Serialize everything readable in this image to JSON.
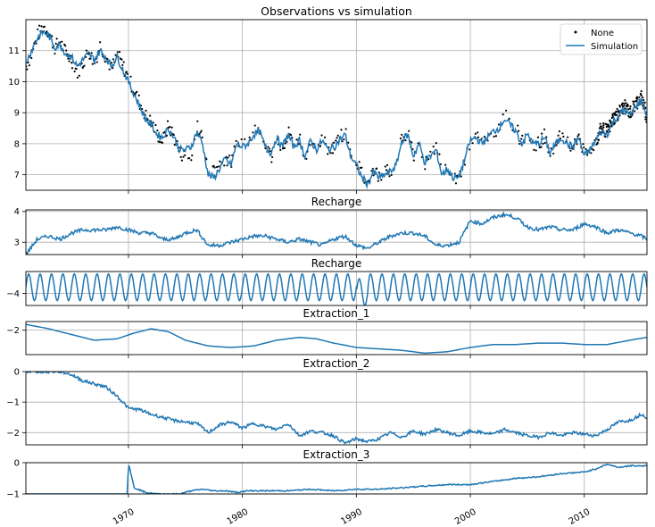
{
  "colors": {
    "simulation": "#1f77b4",
    "observations": "#000000",
    "grid": "#b0b0b0",
    "axis": "#000000",
    "background": "#ffffff"
  },
  "x_tick_labels": [
    "1970",
    "1980",
    "1990",
    "2000",
    "2010"
  ],
  "chart_data": [
    {
      "type": "line",
      "title": "Observations vs simulation",
      "xlabel": "",
      "ylabel": "",
      "xlim": [
        1961.0,
        2015.5
      ],
      "ylim": [
        6.5,
        12.0
      ],
      "yticks": [
        7,
        8,
        9,
        10,
        11
      ],
      "grid": true,
      "legend": "top-right",
      "series": [
        {
          "name": "None",
          "style": "points",
          "color": "#000000",
          "x": [
            1961.0,
            1961.5,
            1962.0,
            1962.5,
            1963.0,
            1963.5,
            1964.0,
            1964.5,
            1965.0,
            1965.5,
            1966.0,
            1966.5,
            1967.0,
            1967.5,
            1968.0,
            1968.5,
            1969.0,
            1969.5,
            1970.0,
            1970.5,
            1971.0,
            1971.5,
            1972.0,
            1972.5,
            1973.0,
            1973.5,
            1974.0,
            1974.5,
            1975.0,
            1975.5,
            1976.0,
            1976.5,
            1977.0,
            1977.5,
            1978.0,
            1978.5,
            1979.0,
            1979.5,
            1980.0,
            1980.5,
            1981.0,
            1981.5,
            1982.0,
            1982.5,
            1983.0,
            1983.5,
            1984.0,
            1984.5,
            1985.0,
            1985.5,
            1986.0,
            1986.5,
            1987.0,
            1987.5,
            1988.0,
            1988.5,
            1989.0,
            1989.5,
            1990.0,
            1990.5,
            1991.0,
            1991.5,
            1992.0,
            1992.5,
            1993.0,
            1993.5,
            1994.0,
            1994.5,
            1995.0,
            1995.5,
            1996.0,
            1996.5,
            1997.0,
            1997.5,
            1998.0,
            1998.5,
            1999.0,
            1999.5,
            2000.0,
            2000.5,
            2001.0,
            2001.5,
            2002.0,
            2002.5,
            2003.0,
            2003.5,
            2004.0,
            2004.5,
            2005.0,
            2005.5,
            2006.0,
            2006.5,
            2007.0,
            2007.5,
            2008.0,
            2008.5,
            2009.0,
            2009.5,
            2010.0,
            2010.5,
            2011.0,
            2011.5,
            2012.0,
            2012.5,
            2013.0,
            2013.5,
            2014.0,
            2014.5,
            2015.0,
            2015.5
          ],
          "values": [
            10.5,
            10.9,
            11.5,
            11.8,
            11.6,
            11.1,
            11.3,
            10.9,
            10.7,
            10.3,
            10.6,
            11.0,
            10.6,
            11.2,
            10.8,
            10.4,
            10.9,
            10.5,
            10.1,
            9.7,
            9.3,
            8.9,
            8.7,
            8.3,
            8.1,
            8.6,
            8.2,
            7.7,
            7.6,
            7.7,
            8.6,
            8.1,
            7.2,
            7.1,
            7.3,
            7.6,
            7.3,
            8.2,
            8.0,
            8.1,
            8.4,
            8.5,
            7.9,
            7.6,
            8.3,
            7.8,
            8.4,
            7.9,
            8.2,
            7.5,
            8.2,
            7.8,
            8.2,
            7.7,
            7.9,
            8.2,
            8.4,
            7.6,
            7.4,
            7.0,
            6.8,
            7.2,
            6.9,
            7.1,
            7.2,
            7.4,
            8.2,
            8.4,
            7.6,
            8.1,
            7.4,
            7.6,
            7.9,
            7.1,
            7.3,
            6.9,
            6.8,
            7.5,
            8.1,
            8.3,
            8.0,
            8.2,
            8.4,
            8.5,
            8.9,
            8.7,
            8.5,
            8.0,
            8.4,
            8.0,
            8.0,
            8.3,
            7.7,
            8.0,
            8.3,
            8.0,
            7.9,
            8.3,
            7.6,
            7.8,
            8.1,
            8.5,
            8.4,
            8.8,
            9.0,
            9.2,
            9.0,
            9.3,
            9.5,
            8.8
          ]
        },
        {
          "name": "Simulation",
          "style": "line",
          "color": "#1f77b4",
          "x": [
            1961.0,
            1961.5,
            1962.0,
            1962.5,
            1963.0,
            1963.5,
            1964.0,
            1964.5,
            1965.0,
            1965.5,
            1966.0,
            1966.5,
            1967.0,
            1967.5,
            1968.0,
            1968.5,
            1969.0,
            1969.5,
            1970.0,
            1970.5,
            1971.0,
            1971.5,
            1972.0,
            1972.5,
            1973.0,
            1973.5,
            1974.0,
            1974.5,
            1975.0,
            1975.5,
            1976.0,
            1976.5,
            1977.0,
            1977.5,
            1978.0,
            1978.5,
            1979.0,
            1979.5,
            1980.0,
            1980.5,
            1981.0,
            1981.5,
            1982.0,
            1982.5,
            1983.0,
            1983.5,
            1984.0,
            1984.5,
            1985.0,
            1985.5,
            1986.0,
            1986.5,
            1987.0,
            1987.5,
            1988.0,
            1988.5,
            1989.0,
            1989.5,
            1990.0,
            1990.5,
            1991.0,
            1991.5,
            1992.0,
            1992.5,
            1993.0,
            1993.5,
            1994.0,
            1994.5,
            1995.0,
            1995.5,
            1996.0,
            1996.5,
            1997.0,
            1997.5,
            1998.0,
            1998.5,
            1999.0,
            1999.5,
            2000.0,
            2000.5,
            2001.0,
            2001.5,
            2002.0,
            2002.5,
            2003.0,
            2003.5,
            2004.0,
            2004.5,
            2005.0,
            2005.5,
            2006.0,
            2006.5,
            2007.0,
            2007.5,
            2008.0,
            2008.5,
            2009.0,
            2009.5,
            2010.0,
            2010.5,
            2011.0,
            2011.5,
            2012.0,
            2012.5,
            2013.0,
            2013.5,
            2014.0,
            2014.5,
            2015.0,
            2015.5
          ],
          "values": [
            10.6,
            11.0,
            11.4,
            11.6,
            11.5,
            11.1,
            11.2,
            10.9,
            10.8,
            10.5,
            10.7,
            10.9,
            10.7,
            11.0,
            10.8,
            10.5,
            10.8,
            10.4,
            10.0,
            9.6,
            9.2,
            8.8,
            8.6,
            8.3,
            8.2,
            8.5,
            8.2,
            7.8,
            7.8,
            7.9,
            8.4,
            8.0,
            7.0,
            6.9,
            7.2,
            7.5,
            7.3,
            8.0,
            7.9,
            8.0,
            8.3,
            8.4,
            7.9,
            7.7,
            8.2,
            7.9,
            8.3,
            7.9,
            8.1,
            7.6,
            8.1,
            7.8,
            8.1,
            7.8,
            7.9,
            8.1,
            8.3,
            7.6,
            7.3,
            6.9,
            6.7,
            7.1,
            6.9,
            7.0,
            7.1,
            7.3,
            8.1,
            8.3,
            7.6,
            8.0,
            7.4,
            7.6,
            7.8,
            7.0,
            7.2,
            6.9,
            6.9,
            7.5,
            8.1,
            8.2,
            8.0,
            8.2,
            8.4,
            8.5,
            8.8,
            8.6,
            8.4,
            8.0,
            8.3,
            8.0,
            8.0,
            8.2,
            7.7,
            8.0,
            8.2,
            8.0,
            7.9,
            8.2,
            7.6,
            7.8,
            8.1,
            8.4,
            8.3,
            8.7,
            8.9,
            9.1,
            8.9,
            9.2,
            9.4,
            8.9
          ]
        }
      ]
    },
    {
      "type": "line",
      "title": "Recharge",
      "xlim": [
        1961.0,
        2015.5
      ],
      "ylim": [
        2.6,
        4.05
      ],
      "yticks": [
        3,
        4
      ],
      "grid": true,
      "series": [
        {
          "color": "#1f77b4",
          "x": [
            1961.0,
            1962.0,
            1963.0,
            1964.0,
            1965.0,
            1966.0,
            1967.0,
            1968.0,
            1969.0,
            1970.0,
            1971.0,
            1972.0,
            1973.0,
            1974.0,
            1975.0,
            1976.0,
            1977.0,
            1978.0,
            1979.0,
            1980.0,
            1981.0,
            1982.0,
            1983.0,
            1984.0,
            1985.0,
            1986.0,
            1987.0,
            1988.0,
            1989.0,
            1990.0,
            1991.0,
            1992.0,
            1993.0,
            1994.0,
            1995.0,
            1996.0,
            1997.0,
            1998.0,
            1999.0,
            2000.0,
            2001.0,
            2002.0,
            2003.0,
            2004.0,
            2005.0,
            2006.0,
            2007.0,
            2008.0,
            2009.0,
            2010.0,
            2011.0,
            2012.0,
            2013.0,
            2014.0,
            2015.0,
            2015.5
          ],
          "values": [
            2.6,
            3.1,
            3.2,
            3.1,
            3.3,
            3.4,
            3.4,
            3.4,
            3.5,
            3.4,
            3.3,
            3.3,
            3.1,
            3.1,
            3.3,
            3.4,
            2.9,
            2.9,
            3.0,
            3.1,
            3.2,
            3.2,
            3.1,
            3.0,
            3.1,
            3.0,
            2.9,
            3.1,
            3.2,
            2.9,
            2.8,
            3.0,
            3.2,
            3.3,
            3.3,
            3.2,
            2.9,
            2.9,
            3.0,
            3.7,
            3.6,
            3.8,
            3.9,
            3.8,
            3.5,
            3.4,
            3.5,
            3.4,
            3.4,
            3.6,
            3.5,
            3.3,
            3.4,
            3.3,
            3.2,
            3.1
          ]
        }
      ]
    },
    {
      "type": "line",
      "title": "Recharge",
      "xlim": [
        1961.0,
        2015.5
      ],
      "ylim": [
        -4.5,
        -3.1
      ],
      "yticks": [
        -4
      ],
      "grid": true,
      "series": [
        {
          "color": "#1f77b4",
          "description_of_shape": "seasonal oscillation",
          "amplitude": 0.55,
          "mean": -3.75,
          "period_years": 1.0
        }
      ]
    },
    {
      "type": "line",
      "title": "Extraction_1",
      "xlim": [
        1961.0,
        2015.5
      ],
      "ylim": [
        -2.85,
        -1.7
      ],
      "yticks": [
        -2
      ],
      "grid": true,
      "series": [
        {
          "color": "#1f77b4",
          "x": [
            1961.0,
            1963.0,
            1965.0,
            1967.0,
            1969.0,
            1970.5,
            1972.0,
            1973.5,
            1975.0,
            1977.0,
            1979.0,
            1981.0,
            1983.0,
            1985.0,
            1986.5,
            1988.0,
            1990.0,
            1992.0,
            1994.0,
            1996.0,
            1998.0,
            2000.0,
            2002.0,
            2004.0,
            2006.0,
            2008.0,
            2010.0,
            2012.0,
            2014.0,
            2015.5
          ],
          "values": [
            -1.8,
            -1.95,
            -2.15,
            -2.35,
            -2.3,
            -2.1,
            -1.95,
            -2.05,
            -2.35,
            -2.55,
            -2.6,
            -2.55,
            -2.35,
            -2.25,
            -2.3,
            -2.45,
            -2.6,
            -2.65,
            -2.7,
            -2.8,
            -2.75,
            -2.6,
            -2.5,
            -2.5,
            -2.45,
            -2.45,
            -2.5,
            -2.5,
            -2.35,
            -2.25
          ]
        }
      ]
    },
    {
      "type": "line",
      "title": "Extraction_2",
      "xlim": [
        1961.0,
        2015.5
      ],
      "ylim": [
        -2.4,
        0.0
      ],
      "yticks": [
        0,
        -1,
        -2
      ],
      "grid": true,
      "series": [
        {
          "color": "#1f77b4",
          "x": [
            1961.0,
            1962.0,
            1963.0,
            1964.0,
            1965.0,
            1966.0,
            1967.0,
            1968.0,
            1969.0,
            1970.0,
            1971.0,
            1972.0,
            1973.0,
            1974.0,
            1975.0,
            1976.0,
            1977.0,
            1978.0,
            1979.0,
            1980.0,
            1981.0,
            1982.0,
            1983.0,
            1984.0,
            1985.0,
            1986.0,
            1987.0,
            1988.0,
            1989.0,
            1990.0,
            1991.0,
            1992.0,
            1993.0,
            1994.0,
            1995.0,
            1996.0,
            1997.0,
            1998.0,
            1999.0,
            2000.0,
            2001.0,
            2002.0,
            2003.0,
            2004.0,
            2005.0,
            2006.0,
            2007.0,
            2008.0,
            2009.0,
            2010.0,
            2011.0,
            2012.0,
            2013.0,
            2014.0,
            2015.0,
            2015.5
          ],
          "values": [
            0.0,
            0.0,
            0.0,
            0.0,
            -0.1,
            -0.3,
            -0.4,
            -0.5,
            -0.8,
            -1.2,
            -1.25,
            -1.4,
            -1.5,
            -1.6,
            -1.65,
            -1.7,
            -2.0,
            -1.75,
            -1.65,
            -1.85,
            -1.7,
            -1.8,
            -1.9,
            -1.7,
            -2.1,
            -1.95,
            -2.0,
            -2.1,
            -2.35,
            -2.2,
            -2.3,
            -2.2,
            -2.0,
            -2.15,
            -1.95,
            -2.05,
            -1.9,
            -2.0,
            -2.1,
            -1.95,
            -2.0,
            -2.05,
            -1.9,
            -2.0,
            -2.1,
            -2.15,
            -2.0,
            -2.1,
            -2.0,
            -2.05,
            -2.1,
            -1.9,
            -1.65,
            -1.6,
            -1.4,
            -1.5
          ]
        }
      ]
    },
    {
      "type": "line",
      "title": "Extraction_3",
      "xlim": [
        1961.0,
        2015.5
      ],
      "ylim": [
        -1.0,
        0.0
      ],
      "yticks": [
        0,
        -1
      ],
      "grid": true,
      "series": [
        {
          "color": "#1f77b4",
          "x": [
            1961.0,
            1969.9,
            1970.0,
            1970.5,
            1971.5,
            1972.5,
            1973.5,
            1974.5,
            1975.5,
            1976.5,
            1977.5,
            1978.5,
            1979.5,
            1980.5,
            1982.0,
            1984.0,
            1986.0,
            1988.0,
            1990.0,
            1992.0,
            1994.0,
            1996.0,
            1998.0,
            2000.0,
            2002.0,
            2004.0,
            2006.0,
            2008.0,
            2010.0,
            2011.0,
            2012.0,
            2013.0,
            2014.0,
            2015.5
          ],
          "values": [
            -1.0,
            -1.0,
            0.0,
            -0.8,
            -0.95,
            -1.0,
            -1.0,
            -1.0,
            -0.9,
            -0.85,
            -0.9,
            -0.9,
            -0.95,
            -0.9,
            -0.9,
            -0.9,
            -0.85,
            -0.9,
            -0.85,
            -0.85,
            -0.8,
            -0.75,
            -0.7,
            -0.7,
            -0.6,
            -0.5,
            -0.45,
            -0.35,
            -0.3,
            -0.2,
            -0.05,
            -0.15,
            -0.1,
            -0.1
          ]
        }
      ]
    }
  ]
}
